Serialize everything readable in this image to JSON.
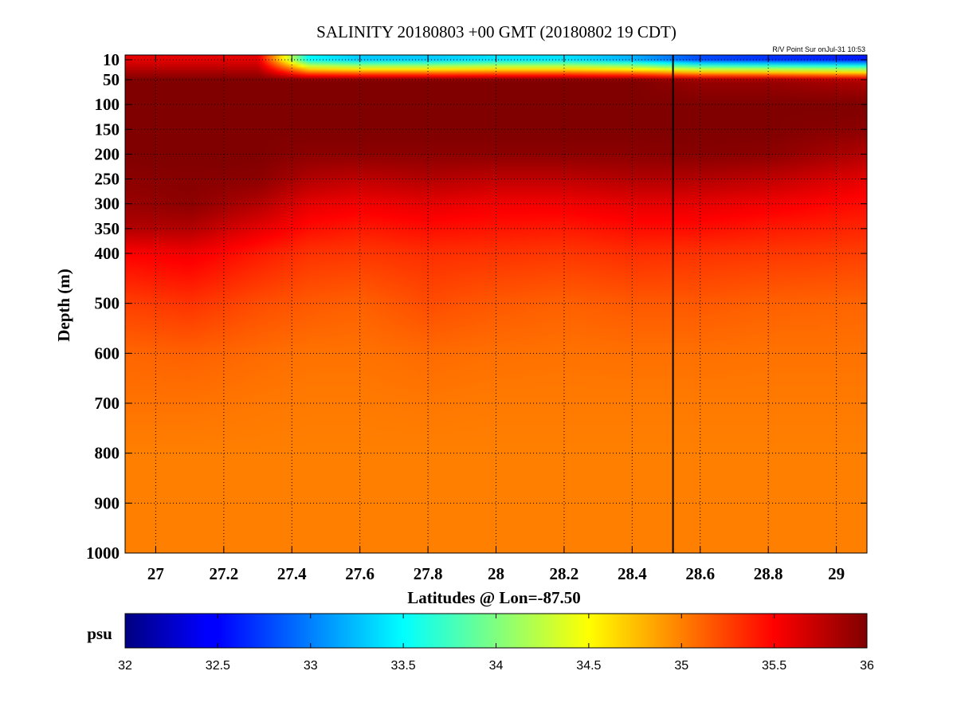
{
  "chart_data": {
    "type": "heatmap",
    "title": "SALINITY 20180803 +00 GMT (20180802 19 CDT)",
    "annotation": "R/V Point Sur onJul-31 10:53",
    "xlabel": "Latitudes @ Lon=-87.50",
    "ylabel": "Depth (m)",
    "xlim": [
      26.91,
      29.09
    ],
    "ylim": [
      10,
      1000
    ],
    "y_scale": "depth-stretched (upper 400 m expanded), depth increasing downward",
    "x_ticks": [
      "27",
      "27.2",
      "27.4",
      "27.6",
      "27.8",
      "28",
      "28.2",
      "28.4",
      "28.6",
      "28.8",
      "29"
    ],
    "y_ticks": [
      "10",
      "50",
      "100",
      "150",
      "200",
      "250",
      "300",
      "350",
      "400",
      "500",
      "600",
      "700",
      "800",
      "900",
      "1000"
    ],
    "grid": true,
    "vertical_marker": {
      "x": 28.52,
      "color": "#000000"
    },
    "colormap": "jet",
    "colorbar": {
      "label": "psu",
      "min": 32,
      "max": 36,
      "ticks": [
        "32",
        "32.5",
        "33",
        "33.5",
        "34",
        "34.5",
        "35",
        "35.5",
        "36"
      ]
    },
    "profile_depths": [
      10,
      50,
      100,
      150,
      200,
      250,
      300,
      350,
      400,
      500,
      600,
      700,
      800,
      900,
      1000
    ],
    "profile_columns": [
      {
        "lat": 26.91,
        "values": [
          35.6,
          36.0,
          36.0,
          36.0,
          36.0,
          35.95,
          35.9,
          35.8,
          35.5,
          35.25,
          35.1,
          35.05,
          35.0,
          35.0,
          35.0
        ]
      },
      {
        "lat": 27.1,
        "values": [
          35.6,
          36.0,
          36.0,
          36.0,
          36.0,
          35.97,
          35.95,
          35.8,
          35.55,
          35.3,
          35.12,
          35.05,
          35.0,
          35.0,
          35.0
        ]
      },
      {
        "lat": 27.3,
        "values": [
          35.6,
          36.0,
          36.0,
          36.0,
          36.0,
          35.95,
          35.8,
          35.6,
          35.4,
          35.2,
          35.08,
          35.03,
          35.0,
          35.0,
          35.0
        ]
      },
      {
        "lat": 27.45,
        "values": [
          33.5,
          36.0,
          36.0,
          36.0,
          35.95,
          35.8,
          35.6,
          35.45,
          35.3,
          35.15,
          35.05,
          35.02,
          35.0,
          35.0,
          35.0
        ]
      },
      {
        "lat": 27.6,
        "values": [
          33.3,
          36.0,
          36.0,
          36.0,
          35.95,
          35.75,
          35.55,
          35.4,
          35.28,
          35.12,
          35.05,
          35.02,
          35.0,
          35.0,
          35.0
        ]
      },
      {
        "lat": 27.8,
        "values": [
          33.3,
          36.0,
          36.0,
          36.0,
          35.95,
          35.8,
          35.6,
          35.45,
          35.32,
          35.2,
          35.08,
          35.03,
          35.0,
          35.0,
          35.0
        ]
      },
      {
        "lat": 28.0,
        "values": [
          33.4,
          36.0,
          36.0,
          36.0,
          35.95,
          35.75,
          35.55,
          35.42,
          35.3,
          35.15,
          35.06,
          35.02,
          35.0,
          35.0,
          35.0
        ]
      },
      {
        "lat": 28.2,
        "values": [
          33.4,
          36.0,
          36.0,
          36.0,
          35.95,
          35.75,
          35.55,
          35.4,
          35.28,
          35.12,
          35.05,
          35.02,
          35.0,
          35.0,
          35.0
        ]
      },
      {
        "lat": 28.4,
        "values": [
          33.2,
          36.0,
          36.0,
          36.0,
          35.95,
          35.8,
          35.6,
          35.45,
          35.32,
          35.15,
          35.06,
          35.02,
          35.0,
          35.0,
          35.0
        ]
      },
      {
        "lat": 28.6,
        "values": [
          32.8,
          35.9,
          36.0,
          36.0,
          35.97,
          35.8,
          35.6,
          35.45,
          35.3,
          35.15,
          35.06,
          35.02,
          35.0,
          35.0,
          35.0
        ]
      },
      {
        "lat": 28.8,
        "values": [
          32.7,
          35.9,
          36.0,
          36.0,
          35.95,
          35.75,
          35.55,
          35.4,
          35.28,
          35.12,
          35.05,
          35.02,
          35.0,
          35.0,
          35.0
        ]
      },
      {
        "lat": 29.09,
        "values": [
          32.6,
          35.8,
          36.0,
          35.95,
          35.8,
          35.6,
          35.45,
          35.35,
          35.25,
          35.1,
          35.05,
          35.02,
          35.0,
          35.0,
          35.0
        ]
      }
    ]
  }
}
